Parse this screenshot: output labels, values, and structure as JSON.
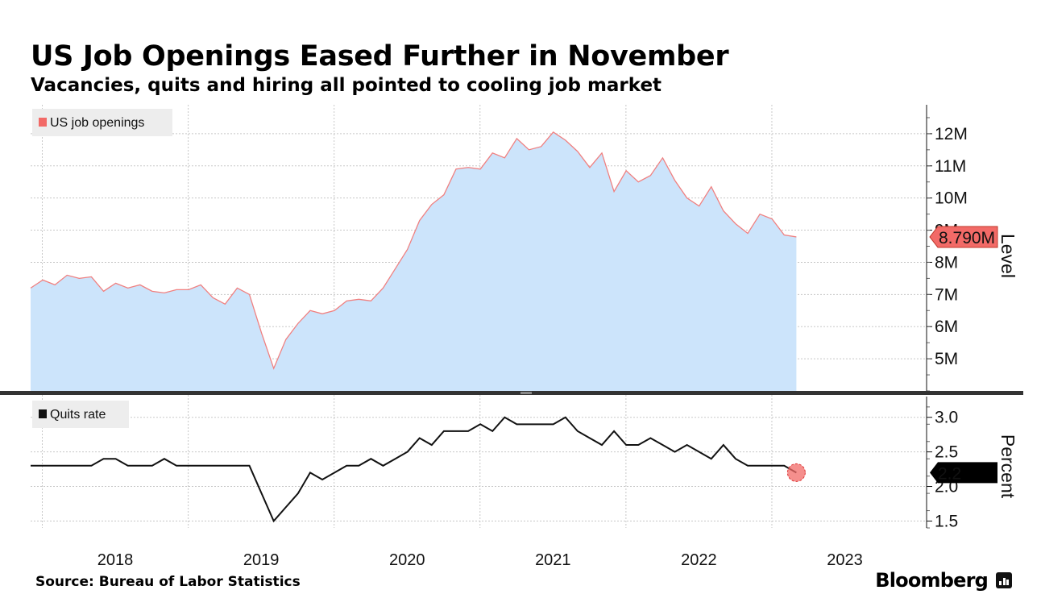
{
  "title": "US Job Openings Eased Further in November",
  "subtitle": "Vacancies, quits and hiring all pointed to cooling job market",
  "source": "Source: Bureau of Labor Statistics",
  "brand": "Bloomberg",
  "colors": {
    "openings_fill": "#cce4fb",
    "openings_line": "#f08080",
    "openings_marker": "#f26a67",
    "quits_line": "#111111",
    "quits_dot": "#f26a67",
    "grid": "#c8c8c8",
    "divider": "#333333"
  },
  "chart_data": [
    {
      "type": "area",
      "name": "openings-panel",
      "legend": "US job openings",
      "ylabel": "Level",
      "ylim": [
        4.0,
        12.9
      ],
      "yticks": [
        5,
        6,
        7,
        8,
        9,
        10,
        11,
        12
      ],
      "ytick_labels": [
        "5M",
        "6M",
        "7M",
        "8M",
        "9M",
        "10M",
        "11M",
        "12M"
      ],
      "x_start": 2017.92,
      "x_step": 0.0833,
      "values": [
        7.2,
        7.45,
        7.3,
        7.6,
        7.5,
        7.55,
        7.1,
        7.35,
        7.2,
        7.3,
        7.1,
        7.05,
        7.15,
        7.15,
        7.3,
        6.9,
        6.7,
        7.2,
        7.0,
        5.8,
        4.7,
        5.6,
        6.1,
        6.5,
        6.4,
        6.5,
        6.8,
        6.85,
        6.8,
        7.2,
        7.8,
        8.4,
        9.3,
        9.8,
        10.1,
        10.9,
        10.95,
        10.9,
        11.4,
        11.25,
        11.85,
        11.5,
        11.6,
        12.05,
        11.8,
        11.45,
        10.95,
        11.4,
        10.2,
        10.85,
        10.5,
        10.7,
        11.25,
        10.55,
        10.0,
        9.75,
        10.35,
        9.6,
        9.2,
        8.9,
        9.5,
        9.35,
        8.85,
        8.79
      ],
      "last_value_label": "8.790M"
    },
    {
      "type": "line",
      "name": "quits-panel",
      "legend": "Quits rate",
      "ylabel": "Percent",
      "ylim": [
        1.4,
        3.3
      ],
      "yticks": [
        1.5,
        2.0,
        2.5,
        3.0
      ],
      "ytick_labels": [
        "1.5",
        "2.0",
        "2.5",
        "3.0"
      ],
      "x_start": 2017.92,
      "x_step": 0.0833,
      "values": [
        2.3,
        2.3,
        2.3,
        2.3,
        2.3,
        2.3,
        2.4,
        2.4,
        2.3,
        2.3,
        2.3,
        2.4,
        2.3,
        2.3,
        2.3,
        2.3,
        2.3,
        2.3,
        2.3,
        1.9,
        1.5,
        1.7,
        1.9,
        2.2,
        2.1,
        2.2,
        2.3,
        2.3,
        2.4,
        2.3,
        2.4,
        2.5,
        2.7,
        2.6,
        2.8,
        2.8,
        2.8,
        2.9,
        2.8,
        3.0,
        2.9,
        2.9,
        2.9,
        2.9,
        3.0,
        2.8,
        2.7,
        2.6,
        2.8,
        2.6,
        2.6,
        2.7,
        2.6,
        2.5,
        2.6,
        2.5,
        2.4,
        2.6,
        2.4,
        2.3,
        2.3,
        2.3,
        2.3,
        2.2
      ],
      "last_value_label": "2.2"
    }
  ],
  "x_axis": {
    "range": [
      2017.92,
      2023.95
    ],
    "year_labels": [
      "2018",
      "2019",
      "2020",
      "2021",
      "2022",
      "2023"
    ]
  }
}
